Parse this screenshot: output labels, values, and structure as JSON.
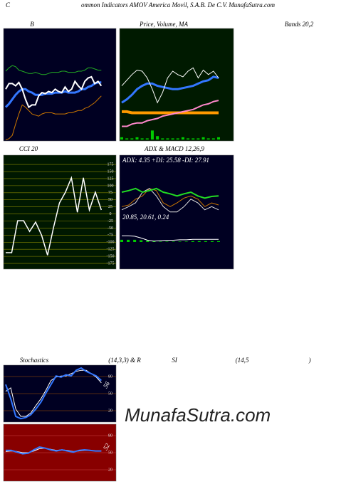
{
  "header": {
    "letter": "C",
    "title": "ommon Indicators AMOV America Movil, S.A.B. De C.V. MunafaSutra.com"
  },
  "watermark": "MunafaSutra.com",
  "chart_data": [
    {
      "type": "line",
      "title": "B",
      "subtitle": "Bands 20,2",
      "ylim": [
        0,
        100
      ],
      "series": [
        {
          "name": "upper",
          "color": "#22aa22",
          "width": 1,
          "values": [
            62,
            65,
            67,
            66,
            63,
            62,
            61,
            60,
            60,
            61,
            60,
            59,
            59,
            60,
            61,
            61,
            61,
            62,
            62,
            61,
            61,
            61,
            62,
            62,
            63,
            65,
            65,
            64,
            63,
            63
          ]
        },
        {
          "name": "middle",
          "color": "#3377ff",
          "width": 3,
          "values": [
            30,
            33,
            37,
            41,
            44,
            46,
            46,
            44,
            43,
            41,
            41,
            41,
            42,
            42,
            42,
            43,
            43,
            43,
            44,
            43,
            43,
            43,
            44,
            46,
            46,
            48,
            49,
            51,
            52,
            52
          ]
        },
        {
          "name": "lower",
          "color": "#cc7700",
          "width": 1,
          "values": [
            1,
            2,
            5,
            15,
            24,
            32,
            30,
            27,
            24,
            23,
            22,
            24,
            25,
            25,
            25,
            24,
            24,
            24,
            24,
            25,
            25,
            26,
            27,
            27,
            29,
            30,
            32,
            34,
            37,
            40
          ]
        },
        {
          "name": "price",
          "color": "#ffffff",
          "width": 2,
          "values": [
            46,
            51,
            51,
            49,
            52,
            46,
            37,
            30,
            32,
            32,
            40,
            43,
            42,
            44,
            43,
            46,
            44,
            43,
            48,
            44,
            46,
            53,
            49,
            46,
            53,
            56,
            57,
            51,
            53,
            49
          ]
        }
      ]
    },
    {
      "type": "line",
      "title": "Price, Volume, MA",
      "ylim": [
        0,
        100
      ],
      "series": [
        {
          "name": "volume",
          "color": "#00cc00",
          "style": "bar",
          "values": [
            2,
            1,
            1,
            2,
            1,
            1,
            8,
            3,
            1,
            1,
            1,
            1,
            2,
            1,
            1,
            1,
            2,
            1,
            1,
            2
          ]
        },
        {
          "name": "ma-long",
          "color": "#ff9900",
          "width": 4,
          "values": [
            26,
            26,
            25,
            25,
            25,
            25,
            25,
            25,
            25,
            25,
            25,
            25,
            25,
            25,
            25,
            25,
            25,
            25,
            25,
            25
          ]
        },
        {
          "name": "ma-pink",
          "color": "#ff88cc",
          "width": 2,
          "values": [
            13,
            13,
            15,
            16,
            16,
            18,
            19,
            20,
            22,
            23,
            24,
            25,
            26,
            27,
            28,
            30,
            32,
            33,
            35,
            36
          ]
        },
        {
          "name": "ma",
          "color": "#3377ff",
          "width": 3,
          "values": [
            34,
            37,
            41,
            46,
            49,
            51,
            51,
            49,
            48,
            47,
            46,
            46,
            47,
            48,
            49,
            51,
            53,
            54,
            57,
            56
          ]
        },
        {
          "name": "price",
          "color": "#ffffff",
          "width": 1,
          "values": [
            49,
            54,
            59,
            63,
            62,
            56,
            46,
            34,
            43,
            56,
            62,
            59,
            57,
            62,
            65,
            56,
            63,
            59,
            62,
            56
          ]
        }
      ]
    },
    {
      "type": "line",
      "title": "CCI 20",
      "ylim": [
        -195,
        208
      ],
      "grid_color": "#888800",
      "yticks": [
        175,
        150,
        125,
        100,
        75,
        50,
        25,
        0,
        -25,
        -50,
        -75,
        -100,
        -125,
        -150,
        -175
      ],
      "series": [
        {
          "name": "cci",
          "color": "#ffffff",
          "width": 1.5,
          "values": [
            -137,
            -137,
            -24,
            -24,
            -62,
            -29,
            -75,
            -146,
            -49,
            39,
            77,
            128,
            6,
            128,
            14,
            77,
            14
          ]
        }
      ]
    },
    {
      "type": "line",
      "title": "ADX  & MACD 12,26,9",
      "ylim": [
        0,
        100
      ],
      "y2lim": [
        0,
        40
      ],
      "annotations": [
        "ADX: 4.35 +DI: 25.58 -DI: 27.91",
        "20.85, 20.61, 0.24"
      ],
      "series": [
        {
          "name": "-DI",
          "color": "#cc7700",
          "width": 1,
          "values": [
            13,
            16,
            27,
            33,
            47,
            43,
            20,
            13,
            20,
            29,
            33,
            27,
            13,
            20,
            16
          ]
        },
        {
          "name": "+DI",
          "color": "#dddddd",
          "width": 1,
          "values": [
            7,
            13,
            20,
            40,
            47,
            33,
            13,
            3,
            3,
            13,
            27,
            20,
            7,
            13,
            7
          ]
        },
        {
          "name": "ADX",
          "color": "#22dd22",
          "width": 2,
          "values": [
            40,
            43,
            47,
            40,
            43,
            47,
            40,
            37,
            33,
            37,
            40,
            33,
            29,
            32,
            33
          ]
        },
        {
          "name": "histogram",
          "color": "#00cc00",
          "style": "bar",
          "axis": "y2",
          "values": [
            5,
            5,
            5,
            4,
            3,
            2,
            1,
            1,
            1,
            1,
            1,
            2,
            2,
            2,
            2,
            2
          ]
        },
        {
          "name": "MACD",
          "color": "#ffffff",
          "width": 1,
          "axis": "y2",
          "values": [
            30,
            30,
            29,
            25,
            20,
            18,
            19,
            20,
            20,
            21,
            21,
            22,
            22,
            22,
            22,
            22
          ]
        }
      ]
    },
    {
      "type": "line",
      "title": "Stochastics",
      "subtitle": "(14,3,3) & R",
      "ylim": [
        0,
        100
      ],
      "grid_color": "#aa5500",
      "yticks": [
        80,
        50,
        20
      ],
      "annotations": [
        "56"
      ],
      "series": [
        {
          "name": "%D",
          "color": "#ffffff",
          "width": 1,
          "values": [
            54,
            60,
            23,
            10,
            10,
            16,
            29,
            41,
            56,
            73,
            79,
            81,
            81,
            85,
            89,
            91,
            91,
            85,
            79,
            69
          ]
        },
        {
          "name": "%K",
          "color": "#3377ff",
          "width": 2,
          "values": [
            66,
            41,
            10,
            6,
            8,
            13,
            23,
            35,
            51,
            66,
            81,
            79,
            83,
            81,
            91,
            95,
            89,
            85,
            81,
            73
          ]
        }
      ]
    },
    {
      "type": "line",
      "title": "SI",
      "subtitle": "(14,5",
      "note": ")",
      "ylim": [
        0,
        100
      ],
      "grid_color": "#cc4444",
      "yticks": [
        80,
        50,
        20
      ],
      "annotations": [
        "52"
      ],
      "series": [
        {
          "name": "rsi-avg",
          "color": "#ffffff",
          "width": 1,
          "values": [
            52,
            53,
            52,
            50,
            50,
            53,
            57,
            58,
            56,
            54,
            55,
            54,
            52,
            53,
            54,
            54,
            53,
            53
          ]
        },
        {
          "name": "rsi",
          "color": "#3377ff",
          "width": 2,
          "values": [
            54,
            54,
            51,
            48,
            49,
            55,
            60,
            58,
            55,
            53,
            55,
            53,
            51,
            54,
            55,
            54,
            53,
            53
          ]
        }
      ]
    }
  ]
}
